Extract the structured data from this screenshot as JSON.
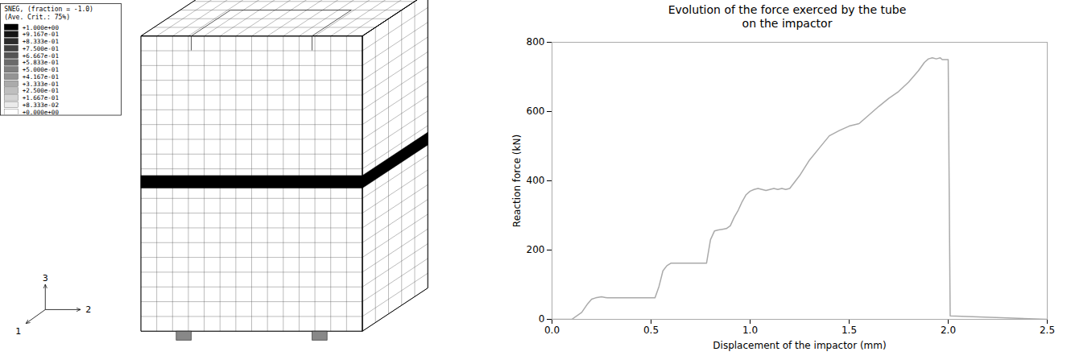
{
  "chart_data": {
    "type": "line",
    "title": "Evolution of the force exerced by the tube\non the impactor",
    "x_label": "Displacement of the impactor (mm)",
    "y_label": "Reaction force (kN)",
    "x": [
      0.0,
      0.1,
      0.15,
      0.18,
      0.2,
      0.22,
      0.25,
      0.27,
      0.28,
      0.3,
      0.32,
      0.34,
      0.36,
      0.38,
      0.4,
      0.42,
      0.44,
      0.46,
      0.48,
      0.5,
      0.52,
      0.54,
      0.56,
      0.58,
      0.6,
      0.62,
      0.64,
      0.66,
      0.68,
      0.7,
      0.72,
      0.74,
      0.76,
      0.78,
      0.8,
      0.82,
      0.84,
      0.86,
      0.88,
      0.9,
      0.92,
      0.94,
      0.96,
      0.98,
      1.0,
      1.02,
      1.04,
      1.06,
      1.08,
      1.1,
      1.12,
      1.14,
      1.16,
      1.18,
      1.2,
      1.25,
      1.3,
      1.35,
      1.4,
      1.45,
      1.5,
      1.55,
      1.6,
      1.65,
      1.7,
      1.75,
      1.8,
      1.85,
      1.88,
      1.9,
      1.92,
      1.94,
      1.96,
      1.97,
      1.98,
      1.99,
      2.0,
      2.01,
      2.5
    ],
    "values": [
      0,
      0,
      20,
      45,
      58,
      62,
      65,
      63,
      62,
      62,
      62,
      62,
      62,
      62,
      62,
      62,
      62,
      62,
      62,
      62,
      62,
      95,
      140,
      155,
      162,
      162,
      162,
      162,
      162,
      162,
      162,
      162,
      162,
      162,
      230,
      255,
      258,
      260,
      262,
      270,
      295,
      315,
      340,
      360,
      370,
      375,
      378,
      375,
      372,
      375,
      378,
      375,
      378,
      375,
      378,
      415,
      460,
      495,
      530,
      545,
      558,
      565,
      590,
      615,
      638,
      658,
      685,
      718,
      742,
      752,
      755,
      752,
      755,
      750,
      750,
      750,
      750,
      10,
      0
    ],
    "color": "#aaaaaa",
    "xlim": [
      0,
      2.5
    ],
    "ylim": [
      0,
      800
    ],
    "xticks": [
      {
        "value": 0,
        "label": "0.0"
      },
      0.5,
      {
        "value": 1,
        "label": "1.0"
      },
      1.5,
      {
        "value": 2,
        "label": "2.0"
      },
      2.5
    ],
    "yticks": [
      0,
      200,
      400,
      600,
      800
    ],
    "annotations": {
      "legend_title": [
        "SNEG, (fraction = -1.0)",
        "(Ave. Crit.: 75%)"
      ],
      "legend_labels": [
        "+1.000e+00",
        "+9.167e-01",
        "+8.333e-01",
        "+7.500e-01",
        "+6.667e-01",
        "+5.833e-01",
        "+5.000e-01",
        "+4.167e-01",
        "+3.333e-01",
        "+2.500e-01",
        "+1.667e-01",
        "+8.333e-02",
        "+0.000e+00"
      ],
      "legend_colors": [
        "#000000",
        "#141414",
        "#2b2b2b",
        "#404040",
        "#545454",
        "#6b6b6b",
        "#808080",
        "#949494",
        "#ababab",
        "#bfbfbf",
        "#d4d4d4",
        "#ebebeb",
        "#ffffff"
      ],
      "axes": [
        "1",
        "2",
        "3"
      ]
    }
  }
}
